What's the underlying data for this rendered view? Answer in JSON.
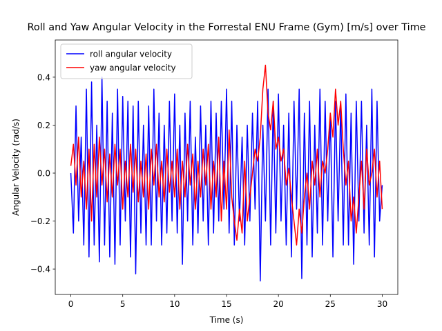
{
  "chart_data": {
    "type": "line",
    "title": "Roll and Yaw Angular Velocity in the Forrestal ENU Frame (Gym) [m/s] over Time",
    "x_label": "Time (s)",
    "y_label": "Angular Velocity (rad/s)",
    "xlim": [
      -1.5,
      31.5
    ],
    "ylim": [
      -0.506,
      0.555
    ],
    "xticks": [
      0,
      5,
      10,
      15,
      20,
      25,
      30
    ],
    "yticks": [
      {
        "value": -0.4,
        "label": "−0.4"
      },
      {
        "value": -0.2,
        "label": "−0.2"
      },
      {
        "value": 0,
        "label": "0.0"
      },
      0.2,
      0.4
    ],
    "grid": false,
    "legend": "upper-left",
    "x": [
      0,
      0.25,
      0.5,
      0.75,
      1,
      1.25,
      1.5,
      1.75,
      2,
      2.25,
      2.5,
      2.75,
      3,
      3.25,
      3.5,
      3.75,
      4,
      4.25,
      4.5,
      4.75,
      5,
      5.25,
      5.5,
      5.75,
      6,
      6.25,
      6.5,
      6.75,
      7,
      7.25,
      7.5,
      7.75,
      8,
      8.25,
      8.5,
      8.75,
      9,
      9.25,
      9.5,
      9.75,
      10,
      10.25,
      10.5,
      10.75,
      11,
      11.25,
      11.5,
      11.75,
      12,
      12.25,
      12.5,
      12.75,
      13,
      13.25,
      13.5,
      13.75,
      14,
      14.25,
      14.5,
      14.75,
      15,
      15.25,
      15.5,
      15.75,
      16,
      16.25,
      16.5,
      16.75,
      17,
      17.25,
      17.5,
      17.75,
      18,
      18.25,
      18.5,
      18.75,
      19,
      19.25,
      19.5,
      19.75,
      20,
      20.25,
      20.5,
      20.75,
      21,
      21.25,
      21.5,
      21.75,
      22,
      22.25,
      22.5,
      22.75,
      23,
      23.25,
      23.5,
      23.75,
      24,
      24.25,
      24.5,
      24.75,
      25,
      25.25,
      25.5,
      25.75,
      26,
      26.25,
      26.5,
      26.75,
      27,
      27.25,
      27.5,
      27.75,
      28,
      28.25,
      28.5,
      28.75,
      29,
      29.25,
      29.5,
      29.75,
      30
    ],
    "series": [
      {
        "name": "roll angular velocity",
        "color": "#0000ff",
        "values": [
          0.0,
          -0.25,
          0.28,
          -0.2,
          0.15,
          -0.3,
          0.35,
          -0.35,
          0.38,
          -0.3,
          0.2,
          -0.37,
          0.4,
          -0.3,
          0.3,
          -0.35,
          0.25,
          -0.38,
          0.35,
          -0.3,
          0.32,
          -0.2,
          0.3,
          -0.35,
          0.28,
          -0.42,
          0.3,
          -0.25,
          0.2,
          -0.3,
          0.28,
          -0.3,
          0.35,
          -0.2,
          0.25,
          -0.3,
          0.2,
          -0.25,
          0.3,
          -0.2,
          0.33,
          -0.25,
          0.2,
          -0.38,
          0.25,
          -0.2,
          0.3,
          -0.3,
          0.15,
          -0.25,
          0.28,
          -0.2,
          0.2,
          -0.3,
          0.3,
          -0.25,
          0.25,
          -0.2,
          0.3,
          -0.15,
          0.35,
          -0.25,
          0.3,
          -0.3,
          0.2,
          -0.2,
          0.15,
          -0.3,
          0.2,
          -0.2,
          0.25,
          -0.15,
          0.3,
          -0.45,
          0.2,
          -0.2,
          0.35,
          -0.3,
          0.3,
          -0.25,
          0.33,
          -0.2,
          0.2,
          -0.3,
          0.25,
          -0.35,
          0.3,
          -0.15,
          0.35,
          -0.44,
          0.25,
          -0.3,
          0.3,
          -0.35,
          0.2,
          -0.25,
          0.35,
          -0.3,
          0.3,
          -0.2,
          0.25,
          -0.35,
          0.3,
          -0.2,
          0.28,
          -0.3,
          0.33,
          -0.3,
          0.25,
          -0.38,
          0.3,
          -0.2,
          0.3,
          -0.25,
          0.2,
          -0.3,
          0.35,
          -0.35,
          0.3,
          -0.2,
          -0.05
        ]
      },
      {
        "name": "yaw angular velocity",
        "color": "#ff0000",
        "values": [
          0.03,
          0.12,
          -0.05,
          0.15,
          -0.1,
          0.05,
          -0.15,
          0.1,
          -0.2,
          0.12,
          -0.1,
          0.15,
          -0.05,
          0.1,
          -0.12,
          0.08,
          -0.1,
          0.12,
          -0.05,
          0.1,
          -0.15,
          0.05,
          -0.1,
          0.12,
          -0.08,
          0.1,
          -0.12,
          0.05,
          -0.1,
          0.08,
          -0.15,
          0.1,
          -0.05,
          0.12,
          -0.1,
          0.05,
          -0.12,
          0.1,
          -0.08,
          0.05,
          -0.1,
          0.1,
          -0.15,
          0.05,
          -0.1,
          0.12,
          -0.05,
          0.08,
          -0.15,
          0.05,
          -0.1,
          0.1,
          -0.05,
          0.12,
          -0.15,
          0.05,
          -0.1,
          0.15,
          -0.2,
          0.05,
          -0.15,
          0.18,
          -0.1,
          -0.2,
          -0.28,
          -0.15,
          -0.25,
          0.05,
          -0.2,
          -0.1,
          0.0,
          0.1,
          0.05,
          0.15,
          0.35,
          0.45,
          0.25,
          0.18,
          0.3,
          0.1,
          0.15,
          0.05,
          0.1,
          -0.05,
          0.02,
          -0.1,
          -0.2,
          -0.3,
          -0.15,
          -0.25,
          -0.1,
          0.0,
          -0.15,
          0.05,
          -0.05,
          0.1,
          -0.1,
          0.05,
          0.0,
          0.1,
          0.25,
          0.15,
          0.35,
          0.2,
          0.3,
          0.1,
          -0.05,
          0.05,
          -0.2,
          -0.1,
          -0.25,
          -0.1,
          0.05,
          -0.15,
          0.1,
          -0.05,
          0.0,
          0.1,
          -0.1,
          0.05,
          -0.15
        ]
      }
    ]
  }
}
